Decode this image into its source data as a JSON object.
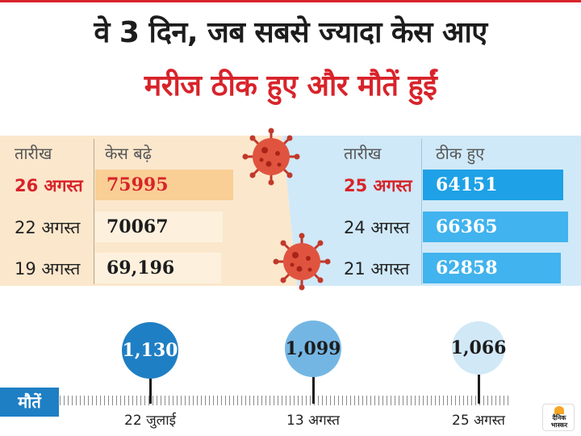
{
  "headline": {
    "line1": "वे 3 दिन, जब सबसे ज्यादा केस आए",
    "line2": "मरीज ठीक हुए और मौतें हुईं"
  },
  "colors": {
    "red": "#d8232a",
    "cases_panel": "#fbe7cc",
    "cases_bar_top": "#f9cf95",
    "cases_bar": "#fdf1de",
    "recovered_panel": "#cfe9f8",
    "recovered_bar": "#1ea1e6",
    "blue_label": "#1f7fc4"
  },
  "logo": {
    "line1": "दैनिक",
    "line2": "भास्कर"
  },
  "chart_data": [
    {
      "type": "bar",
      "orientation": "horizontal",
      "column_headers": {
        "date": "तारीख",
        "value": "केस बढ़े"
      },
      "categories": [
        "26 अगस्त",
        "22 अगस्त",
        "19 अगस्त"
      ],
      "values": [
        75995,
        70067,
        69196
      ],
      "value_labels": [
        "75995",
        "70067",
        "69,196"
      ],
      "highlight_index": 0
    },
    {
      "type": "bar",
      "orientation": "horizontal",
      "column_headers": {
        "date": "तारीख",
        "value": "ठीक हुए"
      },
      "categories": [
        "25 अगस्त",
        "24 अगस्त",
        "21 अगस्त"
      ],
      "values": [
        64151,
        66365,
        62858
      ],
      "value_labels": [
        "64151",
        "66365",
        "62858"
      ],
      "highlight_index": 0
    },
    {
      "type": "scatter",
      "axis_label": "मौतें",
      "categories": [
        "22 जुलाई",
        "13 अगस्त",
        "25 अगस्त"
      ],
      "values": [
        1130,
        1099,
        1066
      ],
      "value_labels": [
        "1,130",
        "1,099",
        "1,066"
      ],
      "bubble_colors": [
        "#1f7fc4",
        "#74b6e3",
        "#d1e8f7"
      ],
      "label_colors": [
        "#ffffff",
        "#1c1c1c",
        "#1c1c1c"
      ]
    }
  ]
}
